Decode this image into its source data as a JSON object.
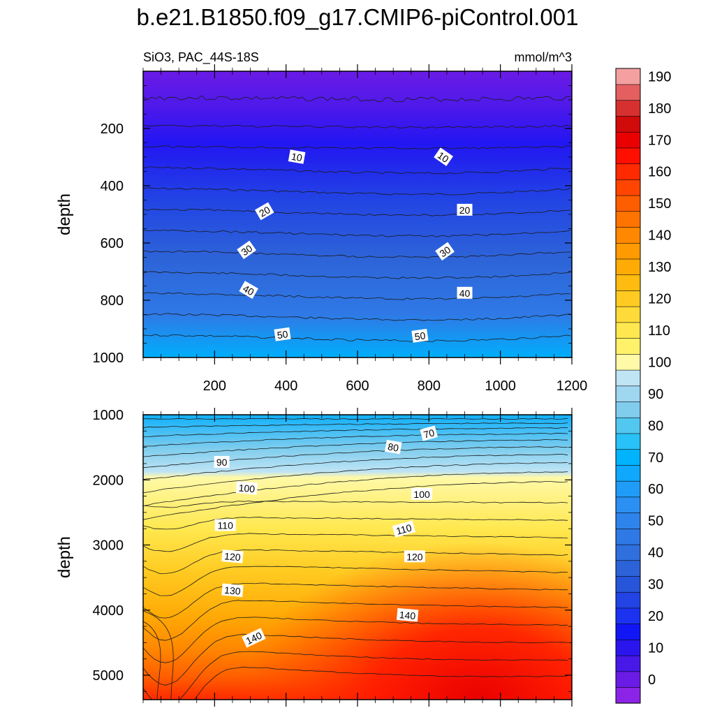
{
  "title": "b.e21.B1850.f09_g17.CMIP6-piControl.001",
  "subtitle_left": "SiO3, PAC_44S-18S",
  "subtitle_right": "mmol/m^3",
  "chart_data": [
    {
      "type": "heatmap",
      "name": "upper-panel",
      "xlabel": "",
      "ylabel": "depth",
      "xlim": [
        0,
        1200
      ],
      "ylim": [
        1000,
        0
      ],
      "x_ticks": [
        200,
        400,
        600,
        800,
        1000,
        1200
      ],
      "y_ticks": [
        200,
        400,
        600,
        800,
        1000
      ],
      "contour_levels": [
        0,
        5,
        10,
        15,
        20,
        25,
        30,
        35,
        40,
        45,
        50,
        55,
        60
      ],
      "contour_labels": [
        {
          "text": "10",
          "x": 430,
          "y": 300,
          "rotate": 10
        },
        {
          "text": "10",
          "x": 840,
          "y": 300,
          "rotate": 35
        },
        {
          "text": "20",
          "x": 340,
          "y": 490,
          "rotate": -30
        },
        {
          "text": "20",
          "x": 900,
          "y": 485,
          "rotate": 0
        },
        {
          "text": "30",
          "x": 290,
          "y": 625,
          "rotate": -35
        },
        {
          "text": "30",
          "x": 845,
          "y": 630,
          "rotate": -35
        },
        {
          "text": "40",
          "x": 295,
          "y": 765,
          "rotate": 30
        },
        {
          "text": "40",
          "x": 900,
          "y": 775,
          "rotate": 0
        },
        {
          "text": "50",
          "x": 390,
          "y": 920,
          "rotate": -8
        },
        {
          "text": "50",
          "x": 775,
          "y": 925,
          "rotate": -8
        }
      ]
    },
    {
      "type": "heatmap",
      "name": "lower-panel",
      "xlabel": "",
      "ylabel": "depth",
      "xlim": [
        0,
        1200
      ],
      "ylim": [
        5375,
        1000
      ],
      "y_ticks": [
        1000,
        2000,
        3000,
        4000,
        5000
      ],
      "contour_labels": [
        {
          "text": "70",
          "x": 800,
          "y": 1290,
          "rotate": -15
        },
        {
          "text": "80",
          "x": 700,
          "y": 1500,
          "rotate": 10
        },
        {
          "text": "90",
          "x": 220,
          "y": 1730,
          "rotate": 0
        },
        {
          "text": "100",
          "x": 290,
          "y": 2130,
          "rotate": 5
        },
        {
          "text": "100",
          "x": 780,
          "y": 2220,
          "rotate": 0
        },
        {
          "text": "110",
          "x": 230,
          "y": 2700,
          "rotate": 0
        },
        {
          "text": "110",
          "x": 730,
          "y": 2760,
          "rotate": -15
        },
        {
          "text": "120",
          "x": 250,
          "y": 3180,
          "rotate": 5
        },
        {
          "text": "120",
          "x": 760,
          "y": 3180,
          "rotate": 0
        },
        {
          "text": "130",
          "x": 250,
          "y": 3700,
          "rotate": 5
        },
        {
          "text": "140",
          "x": 740,
          "y": 4080,
          "rotate": 5
        },
        {
          "text": "140",
          "x": 310,
          "y": 4430,
          "rotate": -25
        }
      ]
    }
  ],
  "colorbar": {
    "tick_labels": [
      "0",
      "10",
      "20",
      "30",
      "40",
      "50",
      "60",
      "70",
      "80",
      "90",
      "100",
      "110",
      "120",
      "130",
      "140",
      "150",
      "160",
      "170",
      "180",
      "190"
    ],
    "levels": [
      -5,
      0,
      5,
      10,
      15,
      20,
      25,
      30,
      35,
      40,
      45,
      50,
      55,
      60,
      65,
      70,
      75,
      80,
      85,
      90,
      95,
      100,
      105,
      110,
      115,
      120,
      125,
      130,
      135,
      140,
      145,
      150,
      155,
      160,
      165,
      170,
      175,
      180,
      185,
      190,
      195
    ],
    "colors": [
      "#8c24e8",
      "#6a1be6",
      "#4818e9",
      "#2a15ee",
      "#1116f5",
      "#1b32f0",
      "#2244e4",
      "#2755da",
      "#2d63d8",
      "#2f6fde",
      "#2f79e6",
      "#2f84ec",
      "#2b90f2",
      "#1f9cf8",
      "#0fa8fc",
      "#00b3fd",
      "#28c2f8",
      "#52c7f0",
      "#80cdee",
      "#9fd6f0",
      "#bfe4f4",
      "#fff9a8",
      "#fff26a",
      "#ffe84f",
      "#ffdb3a",
      "#ffcb22",
      "#ffbb10",
      "#ffab06",
      "#ff9a02",
      "#ff8800",
      "#ff7400",
      "#ff5e00",
      "#ff4500",
      "#ff2a00",
      "#ff0f00",
      "#ea0000",
      "#d10a0a",
      "#d63030",
      "#e46060",
      "#f4a0a0"
    ]
  }
}
